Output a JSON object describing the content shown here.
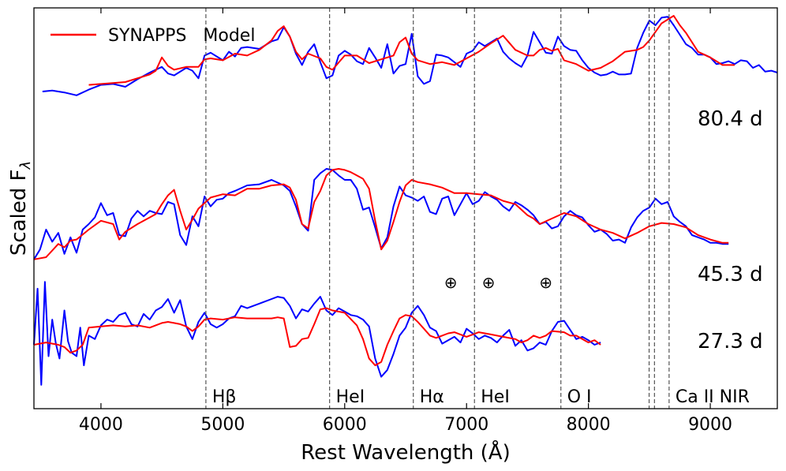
{
  "chart_data": {
    "type": "line",
    "xlabel": "Rest Wavelength (Å)",
    "ylabel": "Scaled F",
    "ylabel_subscript": "λ",
    "xlim": [
      3450,
      9550
    ],
    "xticks": [
      4000,
      5000,
      6000,
      7000,
      8000,
      9000
    ],
    "yticks": [],
    "legend": {
      "position": "top-left",
      "entries": [
        {
          "label": "SYNAPPS   Model",
          "color": "#ff0000"
        }
      ]
    },
    "line_ids": [
      {
        "label": "Hβ",
        "wavelength": 4861
      },
      {
        "label": "HeI",
        "wavelength": 5876
      },
      {
        "label": "Hα",
        "wavelength": 6563
      },
      {
        "label": "HeI",
        "wavelength": 7065
      },
      {
        "label": "O I",
        "wavelength": 7774
      },
      {
        "label": "",
        "wavelength": 8498
      },
      {
        "label": "",
        "wavelength": 8542
      },
      {
        "label": "Ca II NIR",
        "wavelength": 8662
      }
    ],
    "telluric_markers": {
      "symbol": "⊕",
      "wavelengths": [
        6870,
        7180,
        7650
      ]
    },
    "series": [
      {
        "name": "80.4 d",
        "color": "#0000ff",
        "x": [
          3520,
          3600,
          3700,
          3800,
          3900,
          4000,
          4100,
          4200,
          4300,
          4400,
          4500,
          4550,
          4600,
          4700,
          4750,
          4800,
          4850,
          4900,
          5000,
          5050,
          5100,
          5150,
          5200,
          5300,
          5400,
          5450,
          5500,
          5550,
          5600,
          5650,
          5700,
          5750,
          5800,
          5850,
          5900,
          5950,
          6000,
          6050,
          6100,
          6150,
          6200,
          6250,
          6300,
          6350,
          6400,
          6450,
          6500,
          6550,
          6600,
          6650,
          6700,
          6750,
          6800,
          6850,
          6900,
          6950,
          7000,
          7050,
          7100,
          7150,
          7200,
          7250,
          7300,
          7350,
          7400,
          7450,
          7500,
          7550,
          7600,
          7650,
          7700,
          7750,
          7800,
          7850,
          7900,
          7950,
          8000,
          8050,
          8100,
          8150,
          8200,
          8250,
          8300,
          8350,
          8400,
          8450,
          8500,
          8550,
          8600,
          8650,
          8700,
          8750,
          8800,
          8850,
          8900,
          8950,
          9000,
          9050,
          9100,
          9150,
          9200,
          9250,
          9300,
          9350,
          9400,
          9450,
          9500,
          9550
        ],
        "y": [
          0.2,
          0.21,
          0.19,
          0.16,
          0.22,
          0.27,
          0.28,
          0.25,
          0.33,
          0.4,
          0.46,
          0.39,
          0.37,
          0.45,
          0.42,
          0.34,
          0.58,
          0.61,
          0.53,
          0.62,
          0.57,
          0.66,
          0.67,
          0.65,
          0.73,
          0.75,
          0.88,
          0.78,
          0.6,
          0.48,
          0.62,
          0.7,
          0.51,
          0.34,
          0.37,
          0.58,
          0.63,
          0.59,
          0.52,
          0.49,
          0.66,
          0.56,
          0.45,
          0.7,
          0.39,
          0.47,
          0.49,
          0.81,
          0.36,
          0.28,
          0.31,
          0.59,
          0.58,
          0.56,
          0.51,
          0.46,
          0.6,
          0.63,
          0.72,
          0.68,
          0.72,
          0.76,
          0.62,
          0.55,
          0.5,
          0.46,
          0.58,
          0.83,
          0.72,
          0.61,
          0.6,
          0.78,
          0.68,
          0.64,
          0.63,
          0.53,
          0.45,
          0.4,
          0.37,
          0.38,
          0.41,
          0.38,
          0.38,
          0.39,
          0.66,
          0.82,
          0.95,
          0.9,
          0.98,
          0.99,
          0.9,
          0.8,
          0.7,
          0.66,
          0.59,
          0.59,
          0.56,
          0.49,
          0.5,
          0.52,
          0.49,
          0.53,
          0.52,
          0.45,
          0.48,
          0.41,
          0.42,
          0.4
        ]
      },
      {
        "name": "80.4 d model",
        "color": "#ff0000",
        "x": [
          3900,
          4200,
          4400,
          4450,
          4500,
          4550,
          4600,
          4700,
          4800,
          4850,
          4900,
          5000,
          5100,
          5200,
          5300,
          5400,
          5450,
          5500,
          5550,
          5600,
          5650,
          5700,
          5800,
          5850,
          5900,
          6000,
          6100,
          6200,
          6300,
          6400,
          6450,
          6500,
          6550,
          6600,
          6700,
          6800,
          6900,
          7000,
          7100,
          7200,
          7300,
          7400,
          7500,
          7550,
          7600,
          7650,
          7700,
          7750,
          7800,
          7900,
          8000,
          8100,
          8200,
          8300,
          8400,
          8450,
          8500,
          8600,
          8700,
          8750,
          8800,
          8900,
          9000,
          9100,
          9200
        ],
        "y": [
          0.27,
          0.3,
          0.38,
          0.42,
          0.56,
          0.47,
          0.43,
          0.46,
          0.46,
          0.54,
          0.55,
          0.53,
          0.6,
          0.58,
          0.64,
          0.74,
          0.84,
          0.89,
          0.78,
          0.62,
          0.54,
          0.6,
          0.55,
          0.46,
          0.43,
          0.58,
          0.58,
          0.5,
          0.54,
          0.58,
          0.72,
          0.77,
          0.6,
          0.53,
          0.49,
          0.51,
          0.48,
          0.55,
          0.62,
          0.71,
          0.79,
          0.64,
          0.58,
          0.58,
          0.64,
          0.66,
          0.63,
          0.65,
          0.53,
          0.49,
          0.42,
          0.45,
          0.52,
          0.62,
          0.64,
          0.67,
          0.74,
          0.92,
          1.0,
          0.9,
          0.82,
          0.62,
          0.56,
          0.48,
          0.48
        ]
      },
      {
        "name": "45.3 d",
        "color": "#0000ff",
        "x": [
          3450,
          3500,
          3550,
          3600,
          3650,
          3700,
          3750,
          3800,
          3850,
          3900,
          3950,
          4000,
          4050,
          4100,
          4150,
          4200,
          4250,
          4300,
          4350,
          4400,
          4450,
          4500,
          4550,
          4600,
          4650,
          4700,
          4750,
          4800,
          4850,
          4900,
          4950,
          5000,
          5050,
          5100,
          5200,
          5300,
          5400,
          5500,
          5550,
          5600,
          5650,
          5700,
          5750,
          5800,
          5850,
          5900,
          5950,
          6000,
          6050,
          6100,
          6150,
          6200,
          6250,
          6300,
          6350,
          6400,
          6450,
          6500,
          6550,
          6600,
          6650,
          6700,
          6750,
          6800,
          6850,
          6900,
          6950,
          7000,
          7050,
          7100,
          7150,
          7200,
          7250,
          7300,
          7350,
          7400,
          7450,
          7500,
          7550,
          7600,
          7650,
          7700,
          7750,
          7800,
          7850,
          7900,
          7950,
          8000,
          8050,
          8100,
          8150,
          8200,
          8250,
          8300,
          8350,
          8400,
          8450,
          8500,
          8550,
          8600,
          8650,
          8700,
          8750,
          8800,
          8850,
          8900,
          8950,
          9000,
          9050,
          9100,
          9150
        ],
        "y": [
          0.08,
          0.17,
          0.35,
          0.24,
          0.32,
          0.13,
          0.28,
          0.14,
          0.35,
          0.4,
          0.46,
          0.59,
          0.48,
          0.5,
          0.3,
          0.29,
          0.45,
          0.52,
          0.47,
          0.52,
          0.5,
          0.49,
          0.6,
          0.58,
          0.3,
          0.21,
          0.47,
          0.38,
          0.65,
          0.56,
          0.62,
          0.63,
          0.68,
          0.7,
          0.75,
          0.76,
          0.8,
          0.75,
          0.7,
          0.56,
          0.4,
          0.34,
          0.8,
          0.86,
          0.9,
          0.89,
          0.84,
          0.8,
          0.8,
          0.72,
          0.53,
          0.55,
          0.37,
          0.18,
          0.28,
          0.56,
          0.74,
          0.66,
          0.64,
          0.61,
          0.65,
          0.51,
          0.49,
          0.63,
          0.65,
          0.48,
          0.58,
          0.68,
          0.58,
          0.61,
          0.69,
          0.65,
          0.62,
          0.56,
          0.52,
          0.6,
          0.57,
          0.53,
          0.48,
          0.4,
          0.42,
          0.36,
          0.38,
          0.47,
          0.52,
          0.48,
          0.46,
          0.39,
          0.33,
          0.35,
          0.31,
          0.25,
          0.26,
          0.23,
          0.37,
          0.46,
          0.52,
          0.55,
          0.63,
          0.58,
          0.6,
          0.47,
          0.42,
          0.38,
          0.3,
          0.28,
          0.26,
          0.23,
          0.23,
          0.22,
          0.22
        ]
      },
      {
        "name": "45.3 d model",
        "color": "#ff0000",
        "x": [
          3450,
          3550,
          3650,
          3700,
          3750,
          3800,
          3900,
          4000,
          4100,
          4150,
          4200,
          4300,
          4400,
          4450,
          4500,
          4550,
          4600,
          4650,
          4700,
          4750,
          4800,
          4900,
          5000,
          5100,
          5200,
          5300,
          5400,
          5500,
          5550,
          5600,
          5650,
          5700,
          5750,
          5800,
          5850,
          5900,
          5950,
          6000,
          6050,
          6100,
          6150,
          6200,
          6250,
          6300,
          6350,
          6400,
          6450,
          6500,
          6550,
          6600,
          6700,
          6800,
          6900,
          7000,
          7100,
          7200,
          7300,
          7400,
          7500,
          7550,
          7600,
          7700,
          7800,
          7900,
          8000,
          8100,
          8200,
          8300,
          8400,
          8500,
          8600,
          8700,
          8800,
          8900,
          9000,
          9100,
          9150
        ],
        "y": [
          0.08,
          0.1,
          0.22,
          0.19,
          0.25,
          0.26,
          0.35,
          0.43,
          0.4,
          0.26,
          0.33,
          0.4,
          0.46,
          0.49,
          0.58,
          0.66,
          0.71,
          0.52,
          0.35,
          0.44,
          0.54,
          0.64,
          0.67,
          0.66,
          0.72,
          0.72,
          0.75,
          0.76,
          0.73,
          0.62,
          0.4,
          0.36,
          0.6,
          0.7,
          0.84,
          0.89,
          0.9,
          0.89,
          0.87,
          0.84,
          0.81,
          0.72,
          0.43,
          0.17,
          0.25,
          0.42,
          0.6,
          0.75,
          0.8,
          0.78,
          0.76,
          0.73,
          0.68,
          0.68,
          0.67,
          0.66,
          0.61,
          0.58,
          0.48,
          0.45,
          0.4,
          0.45,
          0.5,
          0.47,
          0.4,
          0.35,
          0.32,
          0.27,
          0.32,
          0.38,
          0.41,
          0.4,
          0.37,
          0.3,
          0.26,
          0.23,
          0.23
        ]
      },
      {
        "name": "27.3 d",
        "color": "#0000ff",
        "x": [
          3450,
          3480,
          3510,
          3540,
          3570,
          3600,
          3630,
          3660,
          3700,
          3730,
          3760,
          3800,
          3830,
          3860,
          3900,
          3950,
          4000,
          4050,
          4100,
          4150,
          4200,
          4250,
          4300,
          4350,
          4400,
          4450,
          4500,
          4550,
          4600,
          4650,
          4700,
          4750,
          4800,
          4850,
          4900,
          4950,
          5000,
          5050,
          5100,
          5150,
          5200,
          5300,
          5400,
          5450,
          5500,
          5550,
          5600,
          5650,
          5700,
          5750,
          5800,
          5850,
          5900,
          5950,
          6000,
          6050,
          6100,
          6150,
          6200,
          6250,
          6300,
          6350,
          6400,
          6450,
          6500,
          6550,
          6600,
          6650,
          6700,
          6750,
          6800,
          6850,
          6900,
          6950,
          7000,
          7050,
          7100,
          7150,
          7200,
          7250,
          7300,
          7350,
          7400,
          7450,
          7500,
          7550,
          7600,
          7650,
          7700,
          7750,
          7800,
          7850,
          7900,
          7950,
          8000,
          8050,
          8100
        ],
        "y": [
          0.4,
          0.89,
          0.05,
          0.95,
          0.3,
          0.62,
          0.41,
          0.28,
          0.7,
          0.43,
          0.33,
          0.3,
          0.55,
          0.22,
          0.48,
          0.45,
          0.57,
          0.62,
          0.6,
          0.66,
          0.68,
          0.58,
          0.56,
          0.67,
          0.62,
          0.7,
          0.73,
          0.8,
          0.68,
          0.79,
          0.56,
          0.45,
          0.6,
          0.68,
          0.58,
          0.55,
          0.58,
          0.63,
          0.65,
          0.74,
          0.72,
          0.76,
          0.8,
          0.82,
          0.81,
          0.74,
          0.63,
          0.71,
          0.69,
          0.76,
          0.82,
          0.7,
          0.66,
          0.72,
          0.69,
          0.66,
          0.65,
          0.62,
          0.56,
          0.28,
          0.12,
          0.18,
          0.32,
          0.48,
          0.55,
          0.68,
          0.74,
          0.66,
          0.55,
          0.52,
          0.41,
          0.44,
          0.47,
          0.42,
          0.54,
          0.5,
          0.45,
          0.48,
          0.46,
          0.42,
          0.48,
          0.53,
          0.39,
          0.44,
          0.35,
          0.37,
          0.42,
          0.4,
          0.52,
          0.6,
          0.61,
          0.53,
          0.45,
          0.47,
          0.44,
          0.4,
          0.42
        ]
      },
      {
        "name": "27.3 d model",
        "color": "#ff0000",
        "x": [
          3450,
          3550,
          3650,
          3700,
          3750,
          3800,
          3850,
          3900,
          4000,
          4100,
          4200,
          4300,
          4400,
          4500,
          4550,
          4600,
          4650,
          4700,
          4750,
          4800,
          4850,
          4900,
          5000,
          5100,
          5200,
          5300,
          5400,
          5450,
          5500,
          5550,
          5600,
          5650,
          5700,
          5750,
          5800,
          5850,
          5900,
          6000,
          6100,
          6150,
          6200,
          6250,
          6300,
          6350,
          6400,
          6450,
          6500,
          6550,
          6600,
          6650,
          6700,
          6750,
          6800,
          6850,
          6900,
          7000,
          7100,
          7200,
          7300,
          7400,
          7450,
          7500,
          7550,
          7600,
          7650,
          7700,
          7800,
          7850,
          7900,
          8000,
          8050,
          8100
        ],
        "y": [
          0.4,
          0.42,
          0.4,
          0.38,
          0.33,
          0.35,
          0.4,
          0.55,
          0.56,
          0.57,
          0.56,
          0.57,
          0.55,
          0.59,
          0.6,
          0.59,
          0.58,
          0.56,
          0.52,
          0.56,
          0.62,
          0.63,
          0.62,
          0.64,
          0.63,
          0.63,
          0.63,
          0.64,
          0.63,
          0.38,
          0.39,
          0.45,
          0.46,
          0.58,
          0.71,
          0.72,
          0.7,
          0.68,
          0.57,
          0.45,
          0.28,
          0.22,
          0.25,
          0.4,
          0.52,
          0.63,
          0.66,
          0.65,
          0.6,
          0.54,
          0.48,
          0.46,
          0.48,
          0.5,
          0.51,
          0.47,
          0.51,
          0.49,
          0.47,
          0.45,
          0.42,
          0.44,
          0.48,
          0.46,
          0.48,
          0.52,
          0.51,
          0.48,
          0.48,
          0.42,
          0.44,
          0.4
        ]
      }
    ],
    "epoch_labels": [
      "80.4 d",
      "45.3 d",
      "27.3 d"
    ]
  }
}
